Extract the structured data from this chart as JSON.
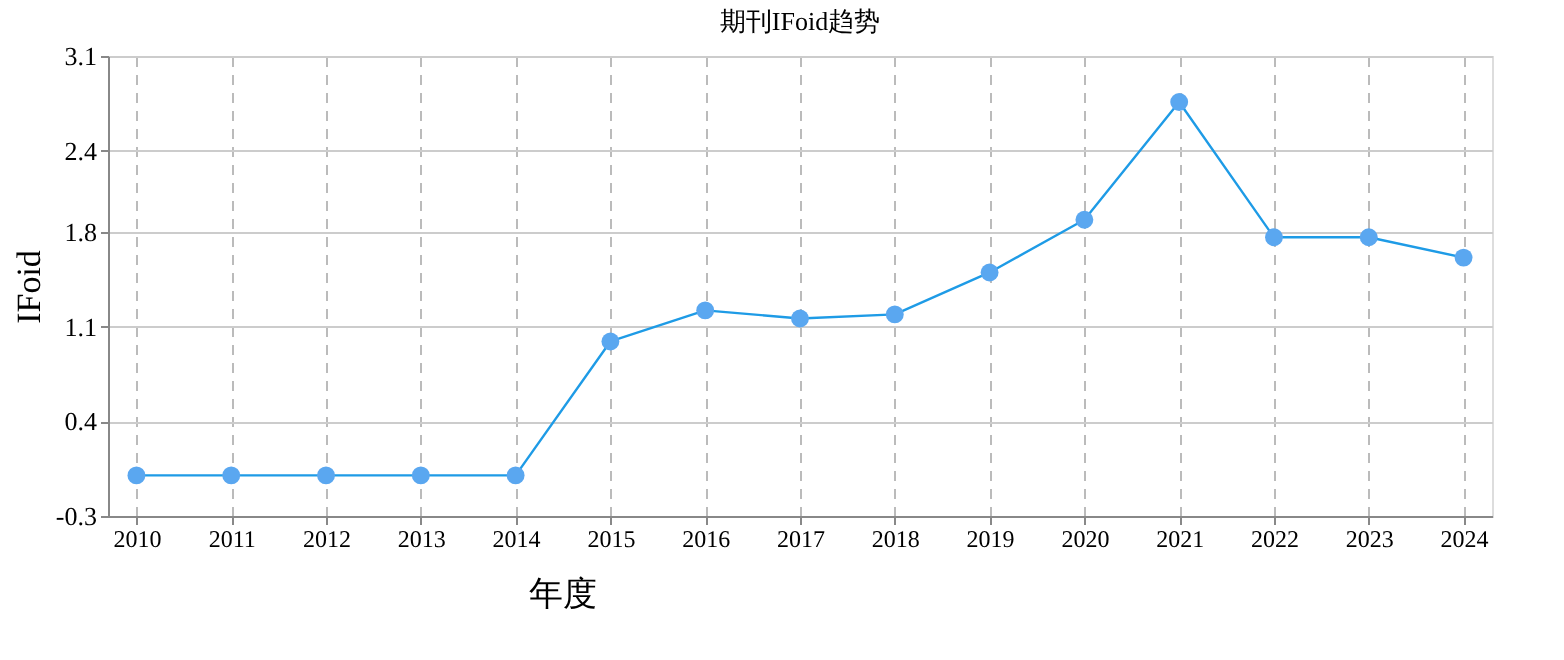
{
  "chart_data": {
    "type": "line",
    "title": "期刊IFoid趋势",
    "xlabel": "年度",
    "ylabel": "IFoid",
    "categories": [
      "2010",
      "2011",
      "2012",
      "2013",
      "2014",
      "2015",
      "2016",
      "2017",
      "2018",
      "2019",
      "2020",
      "2021",
      "2022",
      "2023",
      "2024"
    ],
    "series": [
      {
        "color": "#1e9be6",
        "values": [
          0,
          0,
          0,
          0,
          0,
          0.99,
          1.22,
          1.16,
          1.19,
          1.5,
          1.89,
          2.76,
          1.76,
          1.76,
          1.61
        ]
      }
    ],
    "ylim": [
      -0.3,
      3.1
    ],
    "yticks": [
      -0.3,
      0.4,
      1.1,
      1.8,
      2.4,
      3.1
    ],
    "grid": true,
    "marker": "circle",
    "line_style": "solid"
  }
}
